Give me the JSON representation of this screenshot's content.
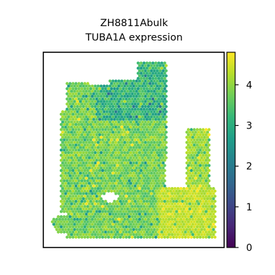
{
  "chart_data": {
    "type": "scatter",
    "title_lines": [
      "ZH8811Abulk",
      "TUBA1A expression"
    ],
    "xlabel": "",
    "ylabel": "",
    "grid": false,
    "colorbar": {
      "colormap": "viridis",
      "range": [
        0,
        4.8
      ],
      "ticks": [
        0,
        1,
        2,
        3,
        4
      ],
      "tick_labels": [
        "0",
        "1",
        "2",
        "3",
        "4"
      ],
      "stops": [
        "#440154",
        "#482878",
        "#3e4989",
        "#31688e",
        "#26828e",
        "#1f9e89",
        "#35b779",
        "#6ece58",
        "#b5de2b",
        "#fde725"
      ]
    },
    "spot_value_summary": {
      "typical": 3.6,
      "min_visible": 0.5,
      "max_visible": 4.8
    },
    "tissue_regions": {
      "main_body": "top-left to bottom, mostly green (3.5-4.0)",
      "upper_band": "darker teal spots (2.5-3.2) along the top-center",
      "lower_right_lobe": "yellow-green high expression (4.0-4.6)",
      "small_lobe_bottom_left": "green (3.5-4.0)"
    }
  }
}
